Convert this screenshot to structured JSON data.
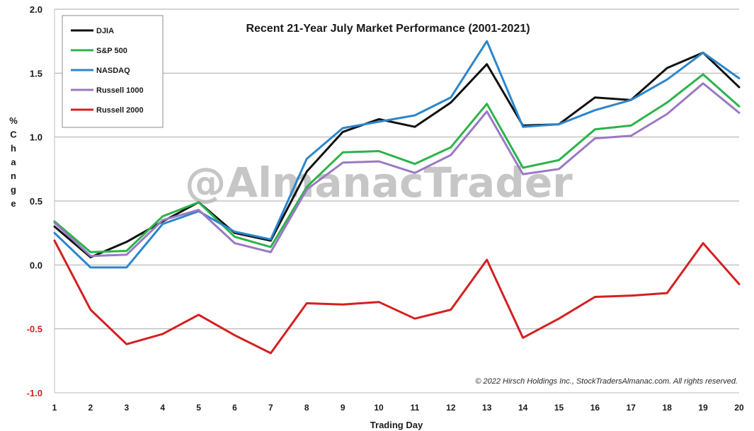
{
  "chart_data": {
    "type": "line",
    "title": "Recent 21-Year July Market Performance (2001-2021)",
    "xlabel": "Trading Day",
    "ylabel": "% Change",
    "x": [
      1,
      2,
      3,
      4,
      5,
      6,
      7,
      8,
      9,
      10,
      11,
      12,
      13,
      14,
      15,
      16,
      17,
      18,
      19,
      20
    ],
    "xticks": [
      "1",
      "2",
      "3",
      "4",
      "5",
      "6",
      "7",
      "8",
      "9",
      "10",
      "11",
      "12",
      "13",
      "14",
      "15",
      "16",
      "17",
      "18",
      "19",
      "20"
    ],
    "ylim": [
      -1.0,
      2.0
    ],
    "yticks": [
      "-1.0",
      "-0.5",
      "0.0",
      "0.5",
      "1.0",
      "1.5",
      "2.0"
    ],
    "ytick_values": [
      -1.0,
      -0.5,
      0.0,
      0.5,
      1.0,
      1.5,
      2.0
    ],
    "grid": "horizontal",
    "legend_position": "top-left",
    "negative_tick_color": "#d42020",
    "positive_tick_color": "#1a1a1a",
    "series": [
      {
        "name": "DJIA",
        "color": "#111111",
        "values": [
          0.3,
          0.06,
          0.18,
          0.34,
          0.49,
          0.25,
          0.19,
          0.73,
          1.04,
          1.14,
          1.08,
          1.27,
          1.57,
          1.09,
          1.1,
          1.31,
          1.29,
          1.54,
          1.66,
          1.39
        ]
      },
      {
        "name": "S&P 500",
        "color": "#2cb34a",
        "values": [
          0.34,
          0.1,
          0.11,
          0.38,
          0.49,
          0.22,
          0.14,
          0.61,
          0.88,
          0.89,
          0.79,
          0.92,
          1.26,
          0.76,
          0.82,
          1.06,
          1.09,
          1.27,
          1.49,
          1.24
        ]
      },
      {
        "name": "NASDAQ",
        "color": "#2c86cc",
        "values": [
          0.25,
          -0.02,
          -0.02,
          0.32,
          0.42,
          0.26,
          0.2,
          0.83,
          1.07,
          1.12,
          1.17,
          1.31,
          1.75,
          1.08,
          1.1,
          1.21,
          1.29,
          1.45,
          1.66,
          1.46
        ]
      },
      {
        "name": "Russell 1000",
        "color": "#9a79c4",
        "values": [
          0.33,
          0.07,
          0.08,
          0.35,
          0.43,
          0.17,
          0.1,
          0.59,
          0.8,
          0.81,
          0.72,
          0.86,
          1.2,
          0.71,
          0.75,
          0.99,
          1.01,
          1.18,
          1.42,
          1.19
        ]
      },
      {
        "name": "Russell 2000",
        "color": "#d42020",
        "values": [
          0.19,
          -0.35,
          -0.62,
          -0.54,
          -0.39,
          -0.55,
          -0.69,
          -0.3,
          -0.31,
          -0.29,
          -0.42,
          -0.35,
          0.04,
          -0.57,
          -0.42,
          -0.25,
          -0.24,
          -0.22,
          0.17,
          -0.15
        ]
      }
    ]
  },
  "watermark": "@AlmanacTrader",
  "copyright": "© 2022 Hirsch Holdings Inc., StockTradersAlmanac.com.  All rights reserved."
}
